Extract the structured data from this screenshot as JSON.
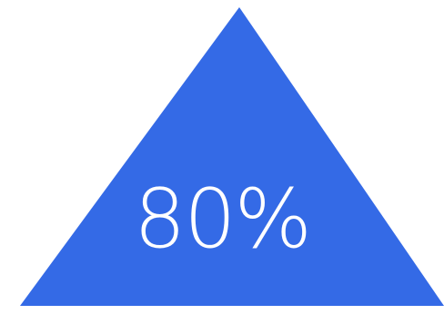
{
  "shape": {
    "type": "triangle",
    "fill_color": "#346AE6",
    "background_color": "#FFFFFF"
  },
  "value": {
    "text": "80%"
  }
}
